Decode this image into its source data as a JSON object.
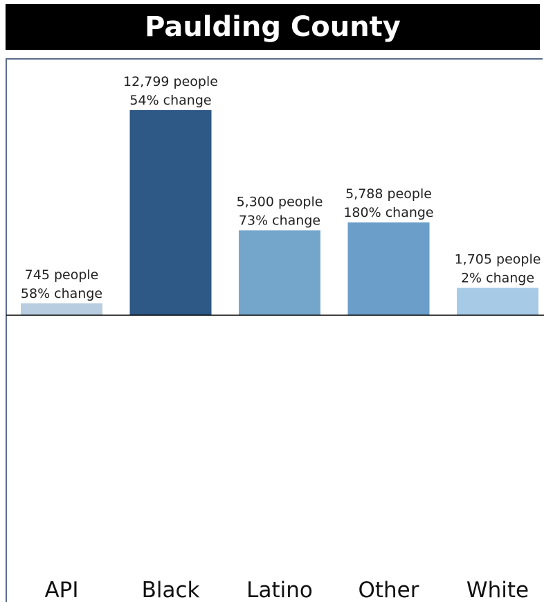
{
  "title": "Paulding County",
  "chart_data": {
    "type": "bar",
    "categories": [
      "API",
      "Black",
      "Latino",
      "Other",
      "White"
    ],
    "values": [
      745,
      12799,
      5300,
      5788,
      1705
    ],
    "value_labels": [
      "745 people",
      "12,799 people",
      "5,300 people",
      "5,788 people",
      "1,705 people"
    ],
    "change_labels": [
      "58% change",
      "54% change",
      "73% change",
      "180% change",
      "2% change"
    ],
    "colors": [
      "#b8cde0",
      "#2e5885",
      "#74a6cc",
      "#6b9ec8",
      "#a7cbe6"
    ],
    "baseline_color": "#000000",
    "frame_color": "#5b6b8c",
    "ylim": [
      0,
      12799
    ]
  }
}
